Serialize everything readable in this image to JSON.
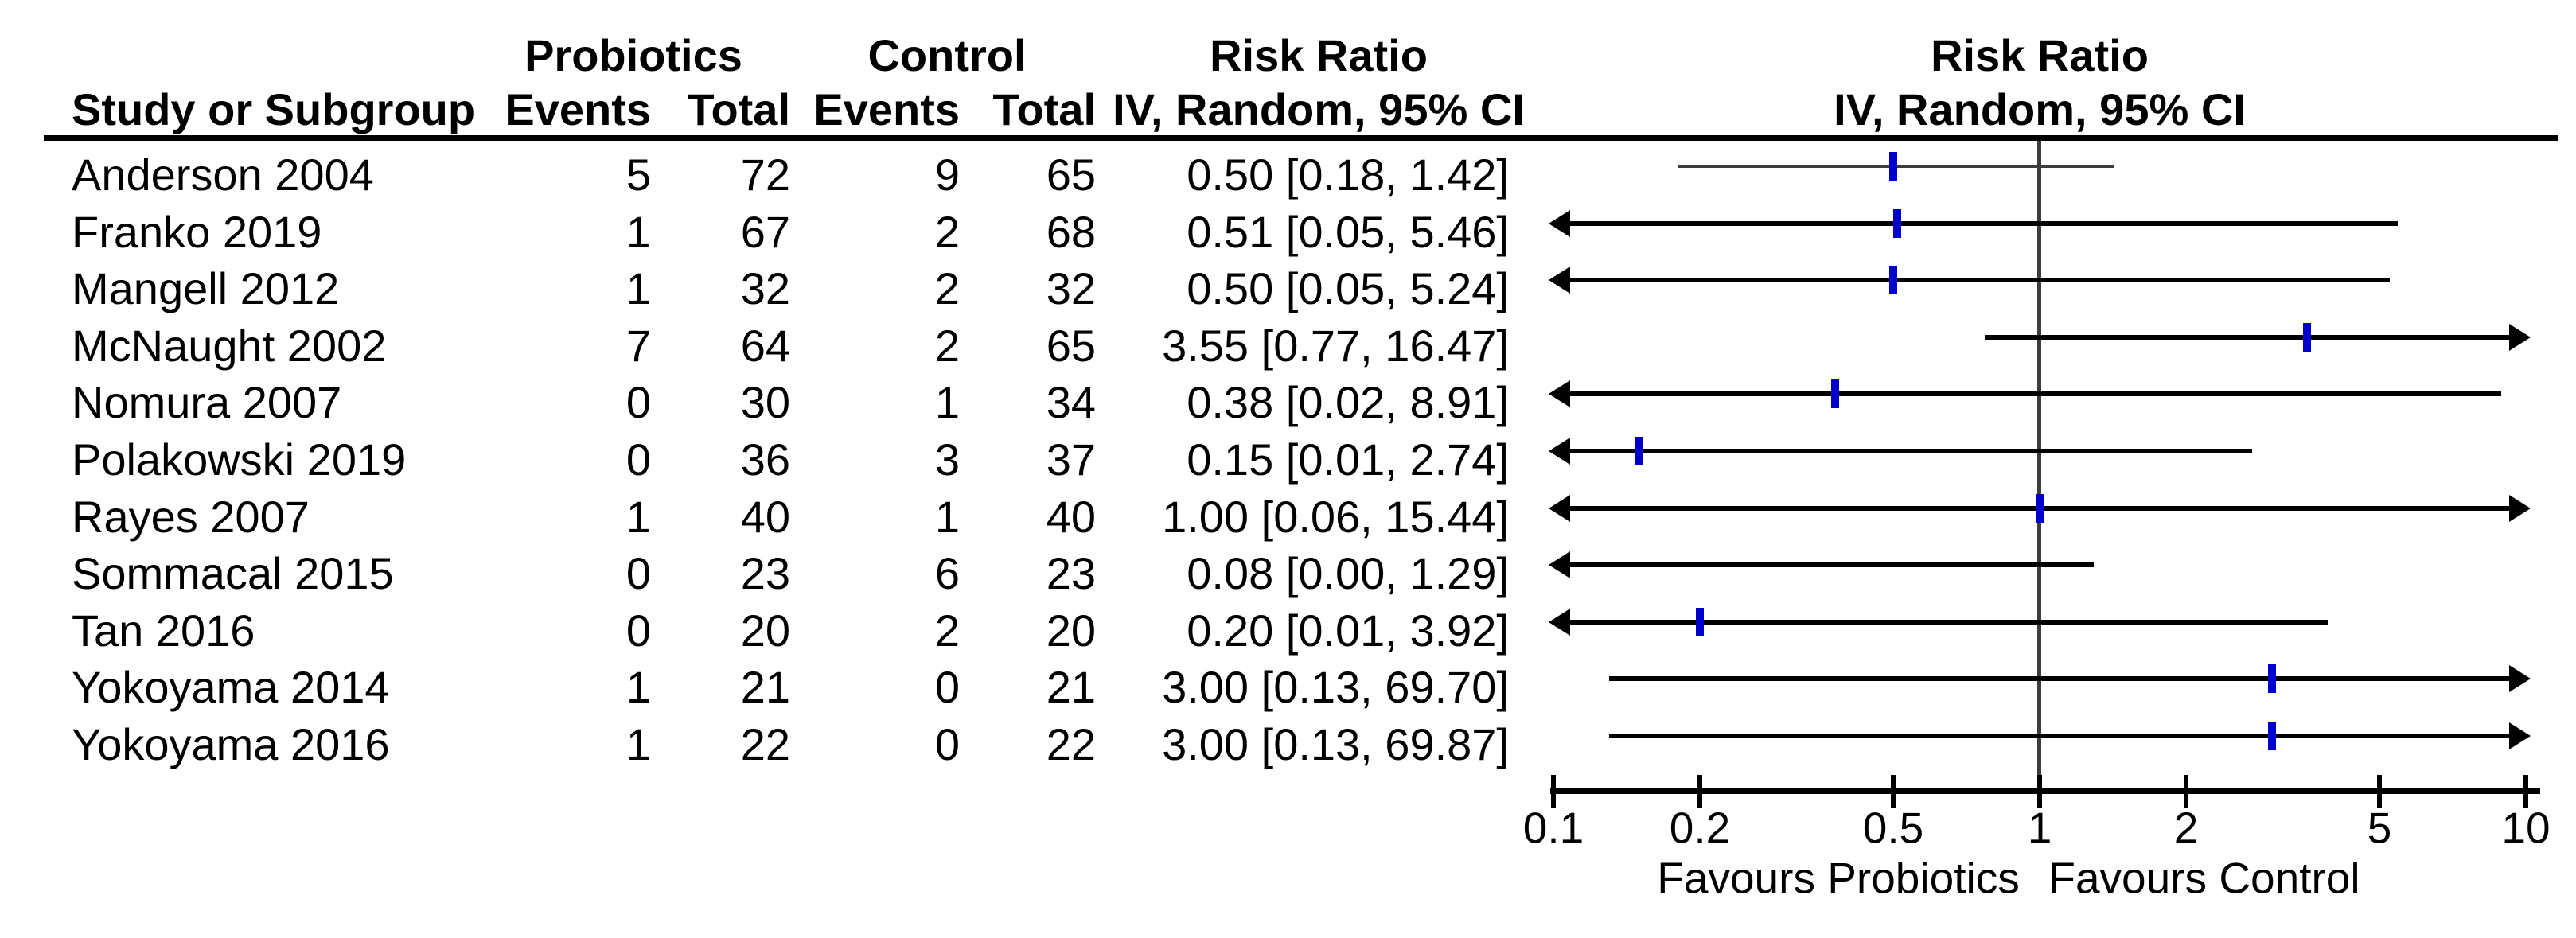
{
  "table": {
    "group_headers": {
      "probiotics": "Probiotics",
      "control": "Control",
      "risk_ratio": "Risk Ratio"
    },
    "column_headers": {
      "study": "Study or Subgroup",
      "events": "Events",
      "total": "Total",
      "method": "IV, Random, 95% CI"
    }
  },
  "plot": {
    "title": "Risk Ratio",
    "subtitle": "IV, Random, 95% CI",
    "axis_tick_labels": [
      "0.1",
      "0.2",
      "0.5",
      "1",
      "2",
      "5",
      "10"
    ],
    "favours_left": "Favours Probiotics",
    "favours_right": "Favours Control"
  },
  "colors": {
    "marker_blue": "#0000CC",
    "ci_black": "#000000",
    "anderson_ci_gray": "#3d3d3d",
    "reference_line_gray": "#3d3d3d",
    "text": "#000000"
  },
  "chart_data": {
    "type": "forest",
    "x_scale": "log",
    "xlim": [
      0.1,
      10
    ],
    "x_ticks": [
      0.1,
      0.2,
      0.5,
      1,
      2,
      5,
      10
    ],
    "effect_measure": "Risk Ratio",
    "model": "IV, Random, 95% CI",
    "studies": [
      {
        "study": "Anderson 2004",
        "prob_events": 5,
        "prob_total": 72,
        "ctrl_events": 9,
        "ctrl_total": 65,
        "rr": 0.5,
        "ci_low": 0.18,
        "ci_high": 1.42,
        "label": "0.50 [0.18, 1.42]",
        "ci_color": "#3d3d3d",
        "ci_width": 4
      },
      {
        "study": "Franko 2019",
        "prob_events": 1,
        "prob_total": 67,
        "ctrl_events": 2,
        "ctrl_total": 68,
        "rr": 0.51,
        "ci_low": 0.05,
        "ci_high": 5.46,
        "label": "0.51 [0.05, 5.46]",
        "ci_color": "#000000",
        "ci_width": 6
      },
      {
        "study": "Mangell 2012",
        "prob_events": 1,
        "prob_total": 32,
        "ctrl_events": 2,
        "ctrl_total": 32,
        "rr": 0.5,
        "ci_low": 0.05,
        "ci_high": 5.24,
        "label": "0.50 [0.05, 5.24]",
        "ci_color": "#000000",
        "ci_width": 6
      },
      {
        "study": "McNaught 2002",
        "prob_events": 7,
        "prob_total": 64,
        "ctrl_events": 2,
        "ctrl_total": 65,
        "rr": 3.55,
        "ci_low": 0.77,
        "ci_high": 16.47,
        "label": "3.55 [0.77, 16.47]",
        "ci_color": "#000000",
        "ci_width": 6
      },
      {
        "study": "Nomura 2007",
        "prob_events": 0,
        "prob_total": 30,
        "ctrl_events": 1,
        "ctrl_total": 34,
        "rr": 0.38,
        "ci_low": 0.02,
        "ci_high": 8.91,
        "label": "0.38 [0.02, 8.91]",
        "ci_color": "#000000",
        "ci_width": 6
      },
      {
        "study": "Polakowski 2019",
        "prob_events": 0,
        "prob_total": 36,
        "ctrl_events": 3,
        "ctrl_total": 37,
        "rr": 0.15,
        "ci_low": 0.01,
        "ci_high": 2.74,
        "label": "0.15 [0.01, 2.74]",
        "ci_color": "#000000",
        "ci_width": 6
      },
      {
        "study": "Rayes 2007",
        "prob_events": 1,
        "prob_total": 40,
        "ctrl_events": 1,
        "ctrl_total": 40,
        "rr": 1.0,
        "ci_low": 0.06,
        "ci_high": 15.44,
        "label": "1.00 [0.06, 15.44]",
        "ci_color": "#000000",
        "ci_width": 6
      },
      {
        "study": "Sommacal 2015",
        "prob_events": 0,
        "prob_total": 23,
        "ctrl_events": 6,
        "ctrl_total": 23,
        "rr": 0.08,
        "ci_low": 0.0,
        "ci_high": 1.29,
        "label": "0.08 [0.00, 1.29]",
        "ci_color": "#000000",
        "ci_width": 6
      },
      {
        "study": "Tan 2016",
        "prob_events": 0,
        "prob_total": 20,
        "ctrl_events": 2,
        "ctrl_total": 20,
        "rr": 0.2,
        "ci_low": 0.01,
        "ci_high": 3.92,
        "label": "0.20 [0.01, 3.92]",
        "ci_color": "#000000",
        "ci_width": 6
      },
      {
        "study": "Yokoyama 2014",
        "prob_events": 1,
        "prob_total": 21,
        "ctrl_events": 0,
        "ctrl_total": 21,
        "rr": 3.0,
        "ci_low": 0.13,
        "ci_high": 69.7,
        "label": "3.00 [0.13, 69.70]",
        "ci_color": "#000000",
        "ci_width": 6
      },
      {
        "study": "Yokoyama 2016",
        "prob_events": 1,
        "prob_total": 22,
        "ctrl_events": 0,
        "ctrl_total": 22,
        "rr": 3.0,
        "ci_low": 0.13,
        "ci_high": 69.87,
        "label": "3.00 [0.13, 69.87]",
        "ci_color": "#000000",
        "ci_width": 6
      }
    ]
  }
}
